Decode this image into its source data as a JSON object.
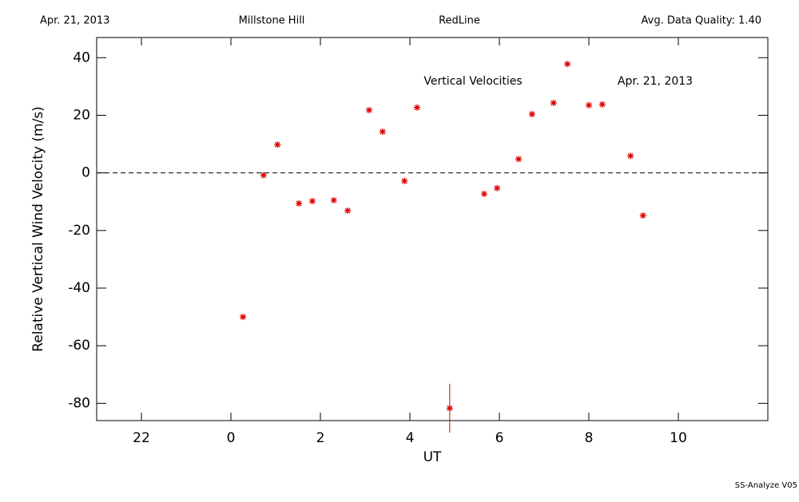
{
  "header": {
    "left": "Apr. 21, 2013",
    "site": "Millstone Hill",
    "instrument": "RedLine",
    "quality": "Avg. Data Quality: 1.40"
  },
  "footer": "SS-Analyze V05",
  "chart_data": {
    "type": "scatter",
    "annotations": [
      "Vertical Velocities",
      "Apr. 21, 2013"
    ],
    "xlabel": "UT",
    "ylabel": "Relative Vertical Wind Velocity (m/s)",
    "x": [
      0.27,
      0.73,
      1.04,
      1.52,
      1.82,
      2.3,
      2.61,
      3.09,
      3.39,
      3.88,
      4.16,
      4.89,
      5.66,
      5.95,
      6.43,
      6.73,
      7.21,
      7.52,
      8.0,
      8.3,
      8.93,
      9.21
    ],
    "values": [
      -50,
      -0.8,
      9.8,
      -10.6,
      -9.8,
      -9.5,
      -13.1,
      21.8,
      14.3,
      -2.8,
      22.7,
      -81.7,
      -7.3,
      -5.3,
      4.8,
      20.4,
      24.3,
      37.8,
      23.5,
      23.8,
      5.9,
      -14.8
    ],
    "errors": [
      null,
      null,
      null,
      null,
      null,
      null,
      null,
      null,
      null,
      null,
      null,
      8.5,
      null,
      null,
      null,
      null,
      null,
      null,
      null,
      null,
      null,
      null
    ],
    "color": "#e00000",
    "hline": 0,
    "xlim": [
      -3,
      12
    ],
    "xticks": [
      {
        "value": -2,
        "label": "22"
      },
      0,
      2,
      4,
      6,
      8,
      10
    ],
    "ylim": [
      -86,
      47
    ],
    "yticks": [
      -80,
      -60,
      -40,
      -20,
      0,
      20,
      40
    ]
  }
}
